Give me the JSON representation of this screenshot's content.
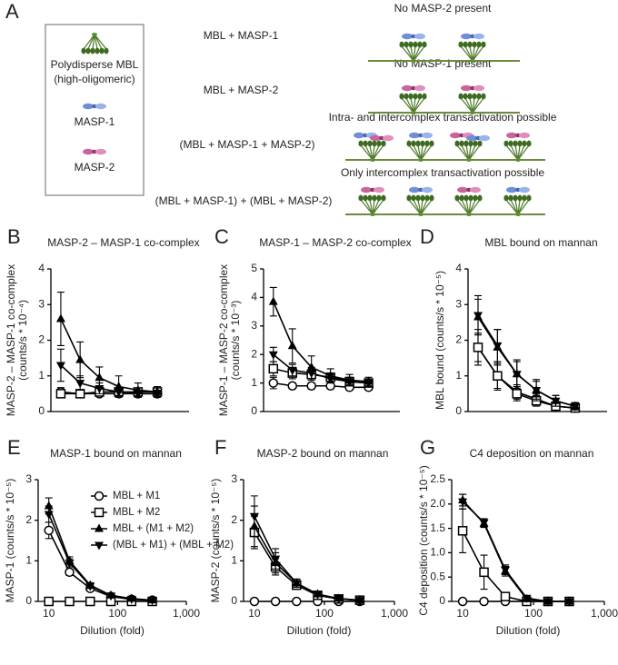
{
  "panel_a": {
    "label": "A",
    "key": {
      "mbl": [
        "Polydisperse MBL",
        "(high-oligomeric)"
      ],
      "masp1": "MASP-1",
      "masp2": "MASP-2"
    },
    "rows": [
      {
        "mix": "MBL + MASP-1",
        "note": "No MASP-2 present"
      },
      {
        "mix": "MBL + MASP-2",
        "note": "No MASP-1 present"
      },
      {
        "mix": "(MBL + MASP-1 + MASP-2)",
        "note": "Intra- and intercomplex transactivation possible"
      },
      {
        "mix": "(MBL + MASP-1) + (MBL + MASP-2)",
        "note": "Only intercomplex transactivation possible"
      }
    ]
  },
  "chart_data": [
    {
      "type": "line",
      "panel": "B",
      "title": "MASP-2 – MASP-1 co-complex",
      "ylabel": [
        "MASP-2 – MASP-1 co-complex",
        "(counts/s * 10⁻⁴)"
      ],
      "x": [
        10,
        20,
        40,
        80,
        160,
        320
      ],
      "xscale": "log",
      "xlim": [
        7,
        1000
      ],
      "ylim": [
        0,
        4
      ],
      "yticks": [
        0,
        1,
        2,
        3,
        4
      ],
      "series": [
        {
          "marker": "circle-open",
          "color": "#000",
          "values": [
            0.55,
            0.5,
            0.5,
            0.5,
            0.5,
            0.5
          ],
          "errors": [
            0.12,
            0.08,
            0.08,
            0.08,
            0.08,
            0.08
          ]
        },
        {
          "marker": "square-open",
          "color": "#000",
          "values": [
            0.5,
            0.5,
            0.55,
            0.55,
            0.55,
            0.55
          ],
          "errors": [
            0.1,
            0.08,
            0.1,
            0.1,
            0.1,
            0.1
          ]
        },
        {
          "marker": "triangle-up",
          "color": "#000",
          "values": [
            2.6,
            1.45,
            0.95,
            0.7,
            0.6,
            0.55
          ],
          "errors": [
            0.75,
            0.5,
            0.3,
            0.3,
            0.2,
            0.15
          ]
        },
        {
          "marker": "triangle-down",
          "color": "#000",
          "values": [
            1.3,
            0.8,
            0.65,
            0.55,
            0.5,
            0.5
          ],
          "errors": [
            0.45,
            0.2,
            0.15,
            0.1,
            0.1,
            0.1
          ]
        }
      ]
    },
    {
      "type": "line",
      "panel": "C",
      "title": "MASP-1 – MASP-2 co-complex",
      "ylabel": [
        "MASP-1 – MASP-2 co-complex",
        "(counts/s * 10⁻³)"
      ],
      "x": [
        10,
        20,
        40,
        80,
        160,
        320
      ],
      "xscale": "log",
      "xlim": [
        7,
        1000
      ],
      "ylim": [
        0,
        5
      ],
      "yticks": [
        0,
        1,
        2,
        3,
        4,
        5
      ],
      "series": [
        {
          "marker": "circle-open",
          "color": "#000",
          "values": [
            1.0,
            0.9,
            0.9,
            0.9,
            0.85,
            0.85
          ],
          "errors": [
            0.2,
            0.1,
            0.1,
            0.1,
            0.1,
            0.1
          ]
        },
        {
          "marker": "square-open",
          "color": "#000",
          "values": [
            1.5,
            1.35,
            1.3,
            1.2,
            1.05,
            1.0
          ],
          "errors": [
            0.25,
            0.2,
            0.2,
            0.15,
            0.15,
            0.1
          ]
        },
        {
          "marker": "triangle-up",
          "color": "#000",
          "values": [
            3.85,
            2.3,
            1.55,
            1.25,
            1.1,
            1.05
          ],
          "errors": [
            0.5,
            0.6,
            0.4,
            0.25,
            0.2,
            0.15
          ]
        },
        {
          "marker": "triangle-down",
          "color": "#000",
          "values": [
            2.0,
            1.45,
            1.35,
            1.15,
            1.05,
            1.0
          ],
          "errors": [
            0.25,
            0.2,
            0.2,
            0.15,
            0.1,
            0.1
          ]
        }
      ]
    },
    {
      "type": "line",
      "panel": "D",
      "title": "MBL bound on mannan",
      "ylabel": [
        "MBL bound (counts/s * 10⁻⁵)"
      ],
      "x": [
        10,
        20,
        40,
        80,
        160,
        320
      ],
      "xscale": "log",
      "xlim": [
        7,
        1000
      ],
      "ylim": [
        0,
        4
      ],
      "yticks": [
        0,
        1,
        2,
        3,
        4
      ],
      "series": [
        {
          "marker": "circle-open",
          "color": "#000",
          "values": [
            1.8,
            1.0,
            0.55,
            0.35,
            0.15,
            0.1
          ],
          "errors": [
            0.5,
            0.4,
            0.2,
            0.15,
            0.1,
            0.08
          ]
        },
        {
          "marker": "square-open",
          "color": "#000",
          "values": [
            1.8,
            1.0,
            0.5,
            0.3,
            0.15,
            0.1
          ],
          "errors": [
            0.4,
            0.35,
            0.2,
            0.15,
            0.1,
            0.08
          ]
        },
        {
          "marker": "triangle-up",
          "color": "#000",
          "values": [
            2.65,
            1.8,
            1.05,
            0.6,
            0.3,
            0.15
          ],
          "errors": [
            0.5,
            0.5,
            0.4,
            0.3,
            0.15,
            0.1
          ]
        },
        {
          "marker": "triangle-down",
          "color": "#000",
          "values": [
            2.7,
            1.85,
            1.05,
            0.6,
            0.3,
            0.15
          ],
          "errors": [
            0.55,
            0.45,
            0.35,
            0.25,
            0.15,
            0.1
          ]
        }
      ]
    },
    {
      "type": "line",
      "panel": "E",
      "title": "MASP-1 bound on mannan",
      "ylabel": [
        "MASP-1 (counts/s * 10⁻⁵)"
      ],
      "xlabel": "Dilution (fold)",
      "x": [
        10,
        20,
        40,
        80,
        160,
        320
      ],
      "xscale": "log",
      "xlim": [
        7,
        1000
      ],
      "xticks": [
        10,
        100,
        {
          "value": 1000,
          "label": "1,000"
        }
      ],
      "ylim": [
        0,
        3
      ],
      "yticks": [
        0,
        1,
        2,
        3
      ],
      "legend": "upper right",
      "series": [
        {
          "name": "MBL + M1",
          "marker": "circle-open",
          "color": "#000",
          "values": [
            1.75,
            0.72,
            0.32,
            0.12,
            0.05,
            0.03
          ],
          "errors": [
            0.2,
            0.08,
            0.05,
            0.03,
            0.02,
            0.02
          ]
        },
        {
          "name": "MBL + M2",
          "marker": "square-open",
          "color": "#000",
          "values": [
            0,
            0,
            0,
            0,
            0,
            0
          ],
          "errors": [
            0,
            0,
            0,
            0,
            0,
            0
          ]
        },
        {
          "name": "MBL + (M1 + M2)",
          "marker": "triangle-up",
          "color": "#000",
          "values": [
            2.35,
            1.0,
            0.4,
            0.15,
            0.07,
            0.03
          ],
          "errors": [
            0.2,
            0.1,
            0.06,
            0.04,
            0.02,
            0.02
          ]
        },
        {
          "name": "(MBL + M1) + (MBL + M2)",
          "marker": "triangle-down",
          "color": "#000",
          "values": [
            2.15,
            0.95,
            0.38,
            0.14,
            0.06,
            0.03
          ],
          "errors": [
            0.2,
            0.1,
            0.06,
            0.04,
            0.02,
            0.02
          ]
        }
      ]
    },
    {
      "type": "line",
      "panel": "F",
      "title": "MASP-2 bound on mannan",
      "ylabel": [
        "MASP-2 (counts/s * 10⁻⁵)"
      ],
      "xlabel": "Dilution (fold)",
      "x": [
        10,
        20,
        40,
        80,
        160,
        320
      ],
      "xscale": "log",
      "xlim": [
        7,
        1000
      ],
      "xticks": [
        10,
        100,
        {
          "value": 1000,
          "label": "1,000"
        }
      ],
      "ylim": [
        0,
        3
      ],
      "yticks": [
        0,
        1,
        2,
        3
      ],
      "series": [
        {
          "marker": "circle-open",
          "color": "#000",
          "values": [
            0,
            0,
            0,
            0,
            0,
            0
          ],
          "errors": [
            0,
            0,
            0,
            0,
            0,
            0
          ]
        },
        {
          "marker": "square-open",
          "color": "#000",
          "values": [
            1.7,
            0.85,
            0.4,
            0.15,
            0.06,
            0.03
          ],
          "errors": [
            0.4,
            0.2,
            0.1,
            0.05,
            0.03,
            0.02
          ]
        },
        {
          "marker": "triangle-up",
          "color": "#000",
          "values": [
            1.85,
            0.95,
            0.45,
            0.18,
            0.07,
            0.03
          ],
          "errors": [
            0.5,
            0.25,
            0.1,
            0.05,
            0.03,
            0.02
          ]
        },
        {
          "marker": "triangle-down",
          "color": "#000",
          "values": [
            2.1,
            1.05,
            0.45,
            0.17,
            0.07,
            0.03
          ],
          "errors": [
            0.5,
            0.25,
            0.1,
            0.05,
            0.03,
            0.02
          ]
        }
      ]
    },
    {
      "type": "line",
      "panel": "G",
      "title": "C4 deposition on mannan",
      "ylabel": [
        "C4 deposition (counts/s * 10⁻⁵)"
      ],
      "xlabel": "Dilution (fold)",
      "x": [
        10,
        20,
        40,
        80,
        160,
        320
      ],
      "xscale": "log",
      "xlim": [
        7,
        1000
      ],
      "xticks": [
        10,
        100,
        {
          "value": 1000,
          "label": "1,000"
        }
      ],
      "ylim": [
        0,
        2.5
      ],
      "yticks": [
        0,
        0.5,
        {
          "value": 1,
          "label": "1.0"
        },
        1.5,
        {
          "value": 2,
          "label": "2.0"
        },
        2.5
      ],
      "series": [
        {
          "marker": "circle-open",
          "color": "#000",
          "values": [
            0,
            0,
            0,
            0,
            0,
            0
          ],
          "errors": [
            0,
            0,
            0,
            0,
            0,
            0
          ]
        },
        {
          "marker": "square-open",
          "color": "#000",
          "values": [
            1.45,
            0.6,
            0.1,
            0,
            0,
            0
          ],
          "errors": [
            0.45,
            0.35,
            0.05,
            0,
            0,
            0
          ]
        },
        {
          "marker": "triangle-up",
          "color": "#000",
          "values": [
            2.08,
            1.6,
            0.62,
            0.05,
            0,
            0
          ],
          "errors": [
            0.12,
            0.08,
            0.1,
            0.03,
            0,
            0
          ]
        },
        {
          "marker": "triangle-down",
          "color": "#000",
          "values": [
            2.05,
            1.62,
            0.65,
            0.07,
            0,
            0
          ],
          "errors": [
            0.15,
            0.08,
            0.1,
            0.03,
            0,
            0
          ]
        }
      ]
    }
  ]
}
